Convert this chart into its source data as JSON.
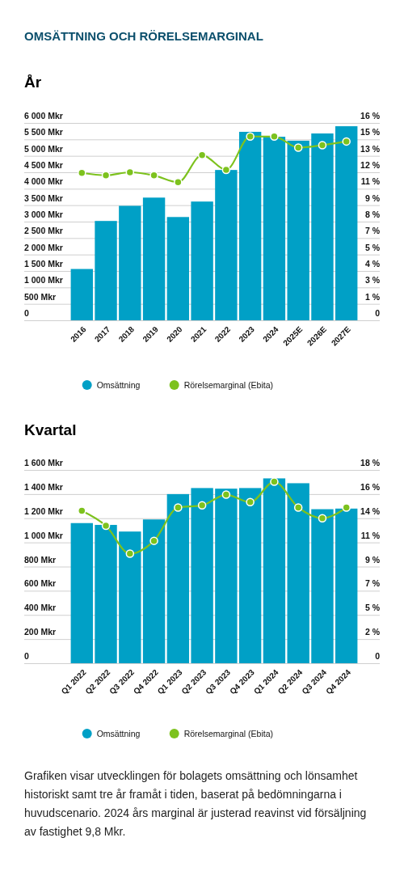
{
  "chart_data": [
    {
      "type": "bar",
      "title": "OMSÄTTNING OCH RÖRELSEMARGINAL",
      "subtitle": "År",
      "categories": [
        "2016",
        "2017",
        "2018",
        "2019",
        "2020",
        "2021",
        "2022",
        "2023",
        "2024",
        "2025E",
        "2026E",
        "2027E"
      ],
      "series": [
        {
          "name": "Omsättning",
          "color": "#00a0c6",
          "values": [
            1560,
            3020,
            3480,
            3730,
            3140,
            3610,
            4570,
            5730,
            5580,
            5460,
            5680,
            5900
          ]
        },
        {
          "name": "Rörelsemarginal (Ebita)",
          "type": "line",
          "axis": "y2",
          "color": "#7dc21e",
          "line_style": "solid",
          "values": [
            11.95,
            11.75,
            12.0,
            11.75,
            11.2,
            13.4,
            12.2,
            14.9,
            14.9,
            14.0,
            14.2,
            14.5
          ]
        }
      ],
      "ylim": [
        0,
        6000
      ],
      "yticks": [
        {
          "value": 0,
          "label": "0"
        },
        {
          "value": 500,
          "label": "500 Mkr"
        },
        {
          "value": 1000,
          "label": "1 000 Mkr"
        },
        {
          "value": 1500,
          "label": "1 500 Mkr"
        },
        {
          "value": 2000,
          "label": "2 000 Mkr"
        },
        {
          "value": 2500,
          "label": "2 500 Mkr"
        },
        {
          "value": 3000,
          "label": "3 000 Mkr"
        },
        {
          "value": 3500,
          "label": "3 500 Mkr"
        },
        {
          "value": 4000,
          "label": "4 000 Mkr"
        },
        {
          "value": 4500,
          "label": "4 500 Mkr"
        },
        {
          "value": 5000,
          "label": "5 000 Mkr"
        },
        {
          "value": 5500,
          "label": "5 500 Mkr"
        },
        {
          "value": 6000,
          "label": "6 000 Mkr"
        }
      ],
      "y2lim": [
        0,
        16
      ],
      "y2ticks": [
        {
          "value": 0,
          "label": "0"
        },
        {
          "value": 1.333,
          "label": "1 %"
        },
        {
          "value": 2.667,
          "label": "3 %"
        },
        {
          "value": 4,
          "label": "4 %"
        },
        {
          "value": 5.333,
          "label": "5 %"
        },
        {
          "value": 6.667,
          "label": "7 %"
        },
        {
          "value": 8,
          "label": "8 %"
        },
        {
          "value": 9.333,
          "label": "9 %"
        },
        {
          "value": 10.667,
          "label": "11 %"
        },
        {
          "value": 12,
          "label": "12 %"
        },
        {
          "value": 13.333,
          "label": "13 %"
        },
        {
          "value": 14.667,
          "label": "15 %"
        },
        {
          "value": 16,
          "label": "16 %"
        }
      ],
      "grid": "y",
      "legend": "bottom",
      "marker": "circle"
    },
    {
      "type": "bar",
      "title": "Kvartal",
      "categories": [
        "Q1 2022",
        "Q2 2022",
        "Q3 2022",
        "Q4 2022",
        "Q1 2023",
        "Q2 2023",
        "Q3 2023",
        "Q4 2023",
        "Q1 2024",
        "Q2 2024",
        "Q3 2024",
        "Q4 2024"
      ],
      "series": [
        {
          "name": "Omsättning",
          "color": "#00a0c6",
          "values": [
            1160,
            1145,
            1090,
            1190,
            1400,
            1450,
            1445,
            1450,
            1530,
            1490,
            1275,
            1280
          ]
        },
        {
          "name": "Rörelsemarginal (Ebita)",
          "type": "line",
          "axis": "y2",
          "color": "#7dc21e",
          "line_style": "solid",
          "values": [
            14.2,
            12.8,
            10.2,
            11.4,
            14.5,
            14.7,
            15.7,
            15.0,
            16.9,
            14.5,
            13.5,
            14.5
          ]
        }
      ],
      "ylim": [
        0,
        1600
      ],
      "yticks": [
        {
          "value": 0,
          "label": "0"
        },
        {
          "value": 200,
          "label": "200 Mkr"
        },
        {
          "value": 400,
          "label": "400 Mkr"
        },
        {
          "value": 600,
          "label": "600 Mkr"
        },
        {
          "value": 800,
          "label": "800 Mkr"
        },
        {
          "value": 1000,
          "label": "1 000 Mkr"
        },
        {
          "value": 1200,
          "label": "1 200 Mkr"
        },
        {
          "value": 1400,
          "label": "1 400 Mkr"
        },
        {
          "value": 1600,
          "label": "1 600 Mkr"
        }
      ],
      "y2lim": [
        0,
        18
      ],
      "y2ticks": [
        {
          "value": 0,
          "label": "0"
        },
        {
          "value": 2.25,
          "label": "2 %"
        },
        {
          "value": 4.5,
          "label": "5 %"
        },
        {
          "value": 6.75,
          "label": "7 %"
        },
        {
          "value": 9,
          "label": "9 %"
        },
        {
          "value": 11.25,
          "label": "11 %"
        },
        {
          "value": 13.5,
          "label": "14 %"
        },
        {
          "value": 15.75,
          "label": "16 %"
        },
        {
          "value": 18,
          "label": "18 %"
        }
      ],
      "grid": "y",
      "legend": "bottom",
      "marker": "circle",
      "annotations": [
        "Grafiken visar utvecklingen för bolagets omsättning och lönsamhet historiskt samt tre år framåt i tiden, baserat på bedömningarna i huvudscenario. 2024 års marginal är justerad reavinst vid försäljning av fastighet 9,8 Mkr."
      ]
    }
  ]
}
